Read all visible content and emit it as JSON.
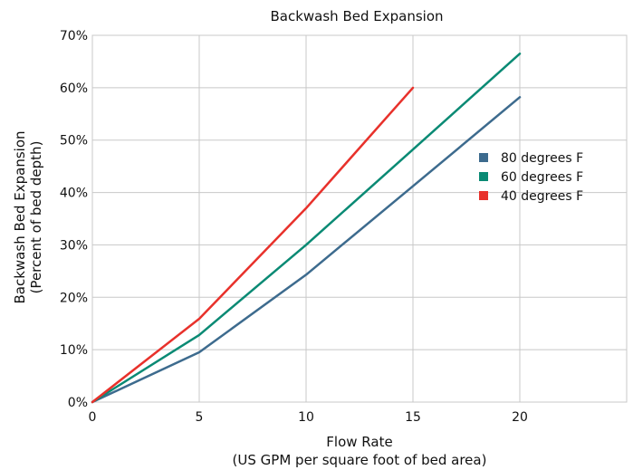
{
  "chart_data": {
    "type": "line",
    "title": "Backwash Bed Expansion",
    "xlabel": [
      "Flow Rate",
      "(US GPM per square foot of bed area)"
    ],
    "ylabel": [
      "Backwash Bed Expansion",
      "(Percent of bed depth)"
    ],
    "xlim": [
      0,
      25
    ],
    "ylim": [
      0,
      70
    ],
    "x_ticks": [
      0,
      5,
      10,
      15,
      20
    ],
    "x_tick_labels": [
      "0",
      "5",
      "10",
      "15",
      "20"
    ],
    "y_ticks": [
      0,
      10,
      20,
      30,
      40,
      50,
      60,
      70
    ],
    "y_tick_labels": [
      "0%",
      "10%",
      "20%",
      "30%",
      "40%",
      "50%",
      "60%",
      "70%"
    ],
    "grid": true,
    "legend_position": "right",
    "series": [
      {
        "name": "80 degrees F",
        "color": "#3d6b8e",
        "x": [
          0,
          5,
          10,
          15,
          20
        ],
        "y": [
          0,
          9.5,
          24.3,
          41.2,
          58.2
        ]
      },
      {
        "name": "60 degrees F",
        "color": "#0a8a74",
        "x": [
          0,
          5,
          10,
          15,
          20
        ],
        "y": [
          0,
          12.8,
          30.0,
          48.2,
          66.5
        ]
      },
      {
        "name": "40 degrees F",
        "color": "#e8312b",
        "x": [
          0,
          5,
          10,
          15
        ],
        "y": [
          0,
          15.9,
          37.0,
          60.0
        ]
      }
    ]
  }
}
